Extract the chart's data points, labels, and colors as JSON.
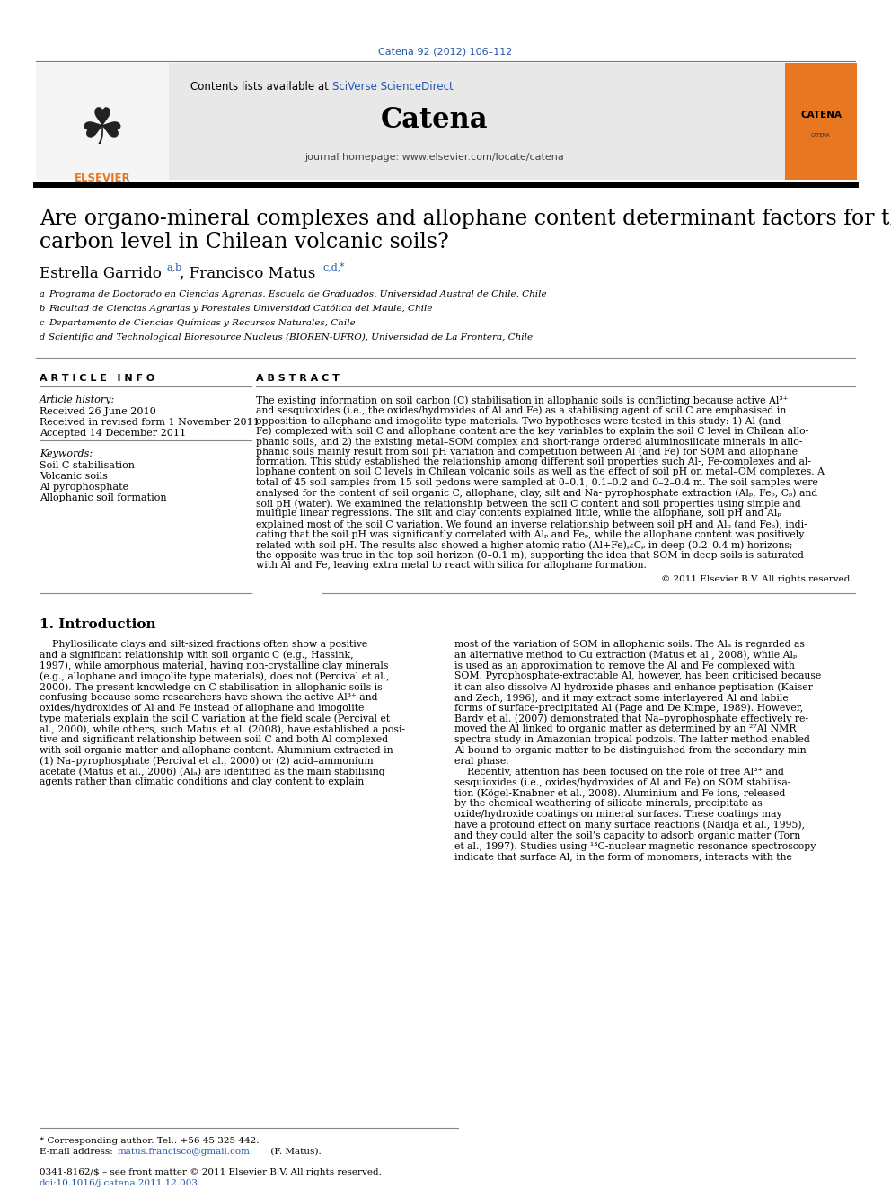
{
  "journal_ref": "Catena 92 (2012) 106–112",
  "journal_name": "Catena",
  "journal_homepage": "journal homepage: www.elsevier.com/locate/catena",
  "contents_text": "Contents lists available at SciVerse ScienceDirect",
  "title": "Are organo-mineral complexes and allophane content determinant factors for the carbon level in Chilean volcanic soils?",
  "article_info_header": "A R T I C L E   I N F O",
  "article_history_header": "Article history:",
  "received": "Received 26 June 2010",
  "received_revised": "Received in revised form 1 November 2011",
  "accepted": "Accepted 14 December 2011",
  "keywords_header": "Keywords:",
  "keywords": [
    "Soil C stabilisation",
    "Volcanic soils",
    "Al pyrophosphate",
    "Allophanic soil formation"
  ],
  "abstract_header": "A B S T R A C T",
  "copyright": "© 2011 Elsevier B.V. All rights reserved.",
  "intro_header": "1. Introduction",
  "footer_note": "* Corresponding author. Tel.: +56 45 325 442.",
  "footer_email": "E-mail address: matus.francisco@gmail.com (F. Matus).",
  "footer_issn": "0341-8162/$ – see front matter © 2011 Elsevier B.V. All rights reserved.",
  "footer_doi": "doi:10.1016/j.catena.2011.12.003",
  "bg_color": "#ffffff",
  "orange_color": "#e87722",
  "blue_link_color": "#2255aa",
  "dark_blue": "#2255aa",
  "title_line1": "Are organo-mineral complexes and allophane content determinant factors for the",
  "title_line2": "carbon level in Chilean volcanic soils?",
  "affiliations": [
    [
      "a",
      "Programa de Doctorado en Ciencias Agrarias. Escuela de Graduados, Universidad Austral de Chile, Chile"
    ],
    [
      "b",
      "Facultad de Ciencias Agrarias y Forestales Universidad Católica del Maule, Chile"
    ],
    [
      "c",
      "Departamento de Ciencias Químicas y Recursos Naturales, Chile"
    ],
    [
      "d",
      "Scientific and Technological Bioresource Nucleus (BIOREN-UFRO), Universidad de La Frontera, Chile"
    ]
  ],
  "abstract_lines": [
    "The existing information on soil carbon (C) stabilisation in allophanic soils is conflicting because active Al³⁺",
    "and sesquioxides (i.e., the oxides/hydroxides of Al and Fe) as a stabilising agent of soil C are emphasised in",
    "opposition to allophane and imogolite type materials. Two hypotheses were tested in this study: 1) Al (and",
    "Fe) complexed with soil C and allophane content are the key variables to explain the soil C level in Chilean allo-",
    "phanic soils, and 2) the existing metal–SOM complex and short-range ordered aluminosilicate minerals in allo-",
    "phanic soils mainly result from soil pH variation and competition between Al (and Fe) for SOM and allophane",
    "formation. This study established the relationship among different soil properties such Al-, Fe-complexes and al-",
    "lophane content on soil C levels in Chilean volcanic soils as well as the effect of soil pH on metal–OM complexes. A",
    "total of 45 soil samples from 15 soil pedons were sampled at 0–0.1, 0.1–0.2 and 0–2–0.4 m. The soil samples were",
    "analysed for the content of soil organic C, allophane, clay, silt and Na- pyrophosphate extraction (Alₚ, Feₚ, Cₚ) and",
    "soil pH (water). We examined the relationship between the soil C content and soil properties using simple and",
    "multiple linear regressions. The silt and clay contents explained little, while the allophane, soil pH and Alₚ",
    "explained most of the soil C variation. We found an inverse relationship between soil pH and Alₚ (and Feₚ), indi-",
    "cating that the soil pH was significantly correlated with Alₚ and Feₚ, while the allophane content was positively",
    "related with soil pH. The results also showed a higher atomic ratio (Al+Fe)ₚ:Cₚ in deep (0.2–0.4 m) horizons;",
    "the opposite was true in the top soil horizon (0–0.1 m), supporting the idea that SOM in deep soils is saturated",
    "with Al and Fe, leaving extra metal to react with silica for allophane formation."
  ],
  "intro_col1_lines": [
    "    Phyllosilicate clays and silt-sized fractions often show a positive",
    "and a significant relationship with soil organic C (e.g., Hassink,",
    "1997), while amorphous material, having non-crystalline clay minerals",
    "(e.g., allophane and imogolite type materials), does not (Percival et al.,",
    "2000). The present knowledge on C stabilisation in allophanic soils is",
    "confusing because some researchers have shown the active Al³⁺ and",
    "oxides/hydroxides of Al and Fe instead of allophane and imogolite",
    "type materials explain the soil C variation at the field scale (Percival et",
    "al., 2000), while others, such Matus et al. (2008), have established a posi-",
    "tive and significant relationship between soil C and both Al complexed",
    "with soil organic matter and allophane content. Aluminium extracted in",
    "(1) Na–pyrophosphate (Percival et al., 2000) or (2) acid–ammonium",
    "acetate (Matus et al., 2006) (Alₐ) are identified as the main stabilising",
    "agents rather than climatic conditions and clay content to explain"
  ],
  "intro_col2_lines": [
    "most of the variation of SOM in allophanic soils. The Alₐ is regarded as",
    "an alternative method to Cu extraction (Matus et al., 2008), while Alₚ",
    "is used as an approximation to remove the Al and Fe complexed with",
    "SOM. Pyrophosphate-extractable Al, however, has been criticised because",
    "it can also dissolve Al hydroxide phases and enhance peptisation (Kaiser",
    "and Zech, 1996), and it may extract some interlayered Al and labile",
    "forms of surface-precipitated Al (Page and De Kimpe, 1989). However,",
    "Bardy et al. (2007) demonstrated that Na–pyrophosphate effectively re-",
    "moved the Al linked to organic matter as determined by an ²⁷Al NMR",
    "spectra study in Amazonian tropical podzols. The latter method enabled",
    "Al bound to organic matter to be distinguished from the secondary min-",
    "eral phase.",
    "    Recently, attention has been focused on the role of free Al³⁺ and",
    "sesquioxides (i.e., oxides/hydroxides of Al and Fe) on SOM stabilisa-",
    "tion (Kögel-Knabner et al., 2008). Aluminium and Fe ions, released",
    "by the chemical weathering of silicate minerals, precipitate as",
    "oxide/hydroxide coatings on mineral surfaces. These coatings may",
    "have a profound effect on many surface reactions (Naidja et al., 1995),",
    "and they could alter the soil’s capacity to adsorb organic matter (Torn",
    "et al., 1997). Studies using ¹³C-nuclear magnetic resonance spectroscopy",
    "indicate that surface Al, in the form of monomers, interacts with the"
  ]
}
